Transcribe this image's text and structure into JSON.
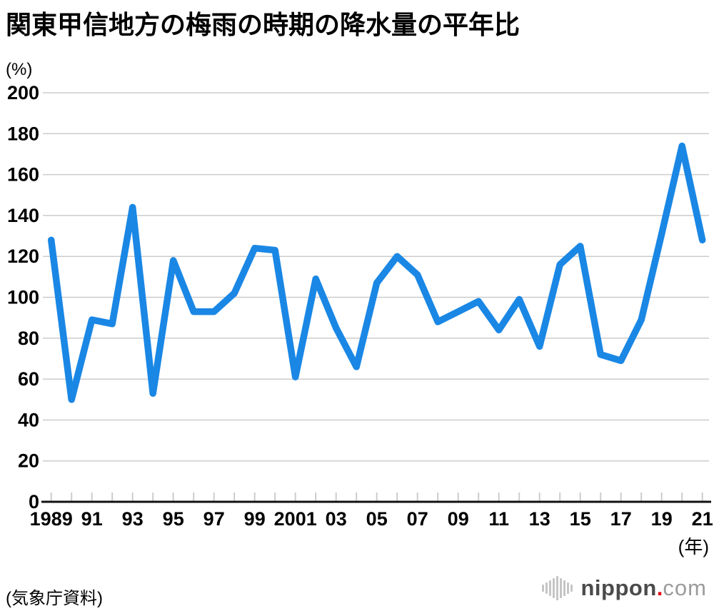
{
  "title": "関東甲信地方の梅雨の時期の降水量の平年比",
  "y_axis_unit": "(%)",
  "x_axis_unit": "(年)",
  "source": "(気象庁資料)",
  "logo": {
    "icon": "waveform-icon",
    "text_bold": "nippon",
    "dot": ".",
    "text_light": "com"
  },
  "chart_data": {
    "type": "line",
    "title": "関東甲信地方の梅雨の時期の降水量の平年比",
    "ylabel": "(%)",
    "xlabel": "(年)",
    "x": [
      1989,
      1990,
      1991,
      1992,
      1993,
      1994,
      1995,
      1996,
      1997,
      1998,
      1999,
      2000,
      2001,
      2002,
      2003,
      2004,
      2005,
      2006,
      2007,
      2008,
      2009,
      2010,
      2011,
      2012,
      2013,
      2014,
      2015,
      2016,
      2017,
      2018,
      2019,
      2020,
      2021
    ],
    "values": [
      128,
      50,
      89,
      87,
      144,
      53,
      118,
      93,
      93,
      102,
      124,
      123,
      61,
      109,
      85,
      66,
      107,
      120,
      111,
      88,
      93,
      98,
      84,
      99,
      76,
      116,
      125,
      72,
      69,
      89,
      131,
      174,
      128
    ],
    "x_tick_labels": [
      "1989",
      "91",
      "93",
      "95",
      "97",
      "99",
      "2001",
      "03",
      "05",
      "07",
      "09",
      "11",
      "13",
      "15",
      "17",
      "19",
      "21"
    ],
    "y_ticks": [
      0,
      20,
      40,
      60,
      80,
      100,
      120,
      140,
      160,
      180,
      200
    ],
    "ylim": [
      0,
      200
    ],
    "grid": true,
    "legend": "none",
    "line_color": "#1a87e5",
    "grid_color": "#cccccc",
    "axis_color": "#111111",
    "tick_color": "#cccccc",
    "label_color": "#000000"
  }
}
